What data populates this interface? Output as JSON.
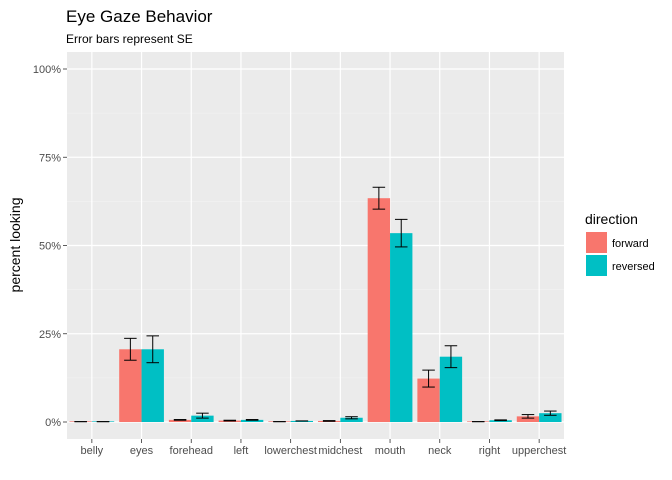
{
  "chart_data": {
    "type": "bar",
    "title": "Eye Gaze Behavior",
    "subtitle": "Error bars represent SE",
    "xlabel": "",
    "ylabel": "percent looking",
    "ylim": [
      0,
      1
    ],
    "y_ticks": [
      0,
      0.25,
      0.5,
      0.75,
      1.0
    ],
    "y_tick_labels": [
      "0%",
      "25%",
      "50%",
      "75%",
      "100%"
    ],
    "categories": [
      "belly",
      "eyes",
      "forehead",
      "left",
      "lowerchest",
      "midchest",
      "mouth",
      "neck",
      "right",
      "upperchest"
    ],
    "legend_title": "direction",
    "legend_position": "right",
    "grid": true,
    "error_bars": "SE",
    "series": [
      {
        "name": "forward",
        "color": "#F8766D",
        "values": [
          0.001,
          0.206,
          0.006,
          0.004,
          0.001,
          0.003,
          0.634,
          0.123,
          0.001,
          0.016
        ],
        "se": [
          0.0,
          0.031,
          0.001,
          0.001,
          0.0,
          0.001,
          0.031,
          0.024,
          0.0,
          0.005
        ]
      },
      {
        "name": "reversed",
        "color": "#00BFC4",
        "values": [
          0.001,
          0.206,
          0.018,
          0.006,
          0.003,
          0.012,
          0.535,
          0.185,
          0.005,
          0.025
        ],
        "se": [
          0.0,
          0.038,
          0.007,
          0.001,
          0.0,
          0.003,
          0.039,
          0.031,
          0.001,
          0.006
        ]
      }
    ]
  }
}
